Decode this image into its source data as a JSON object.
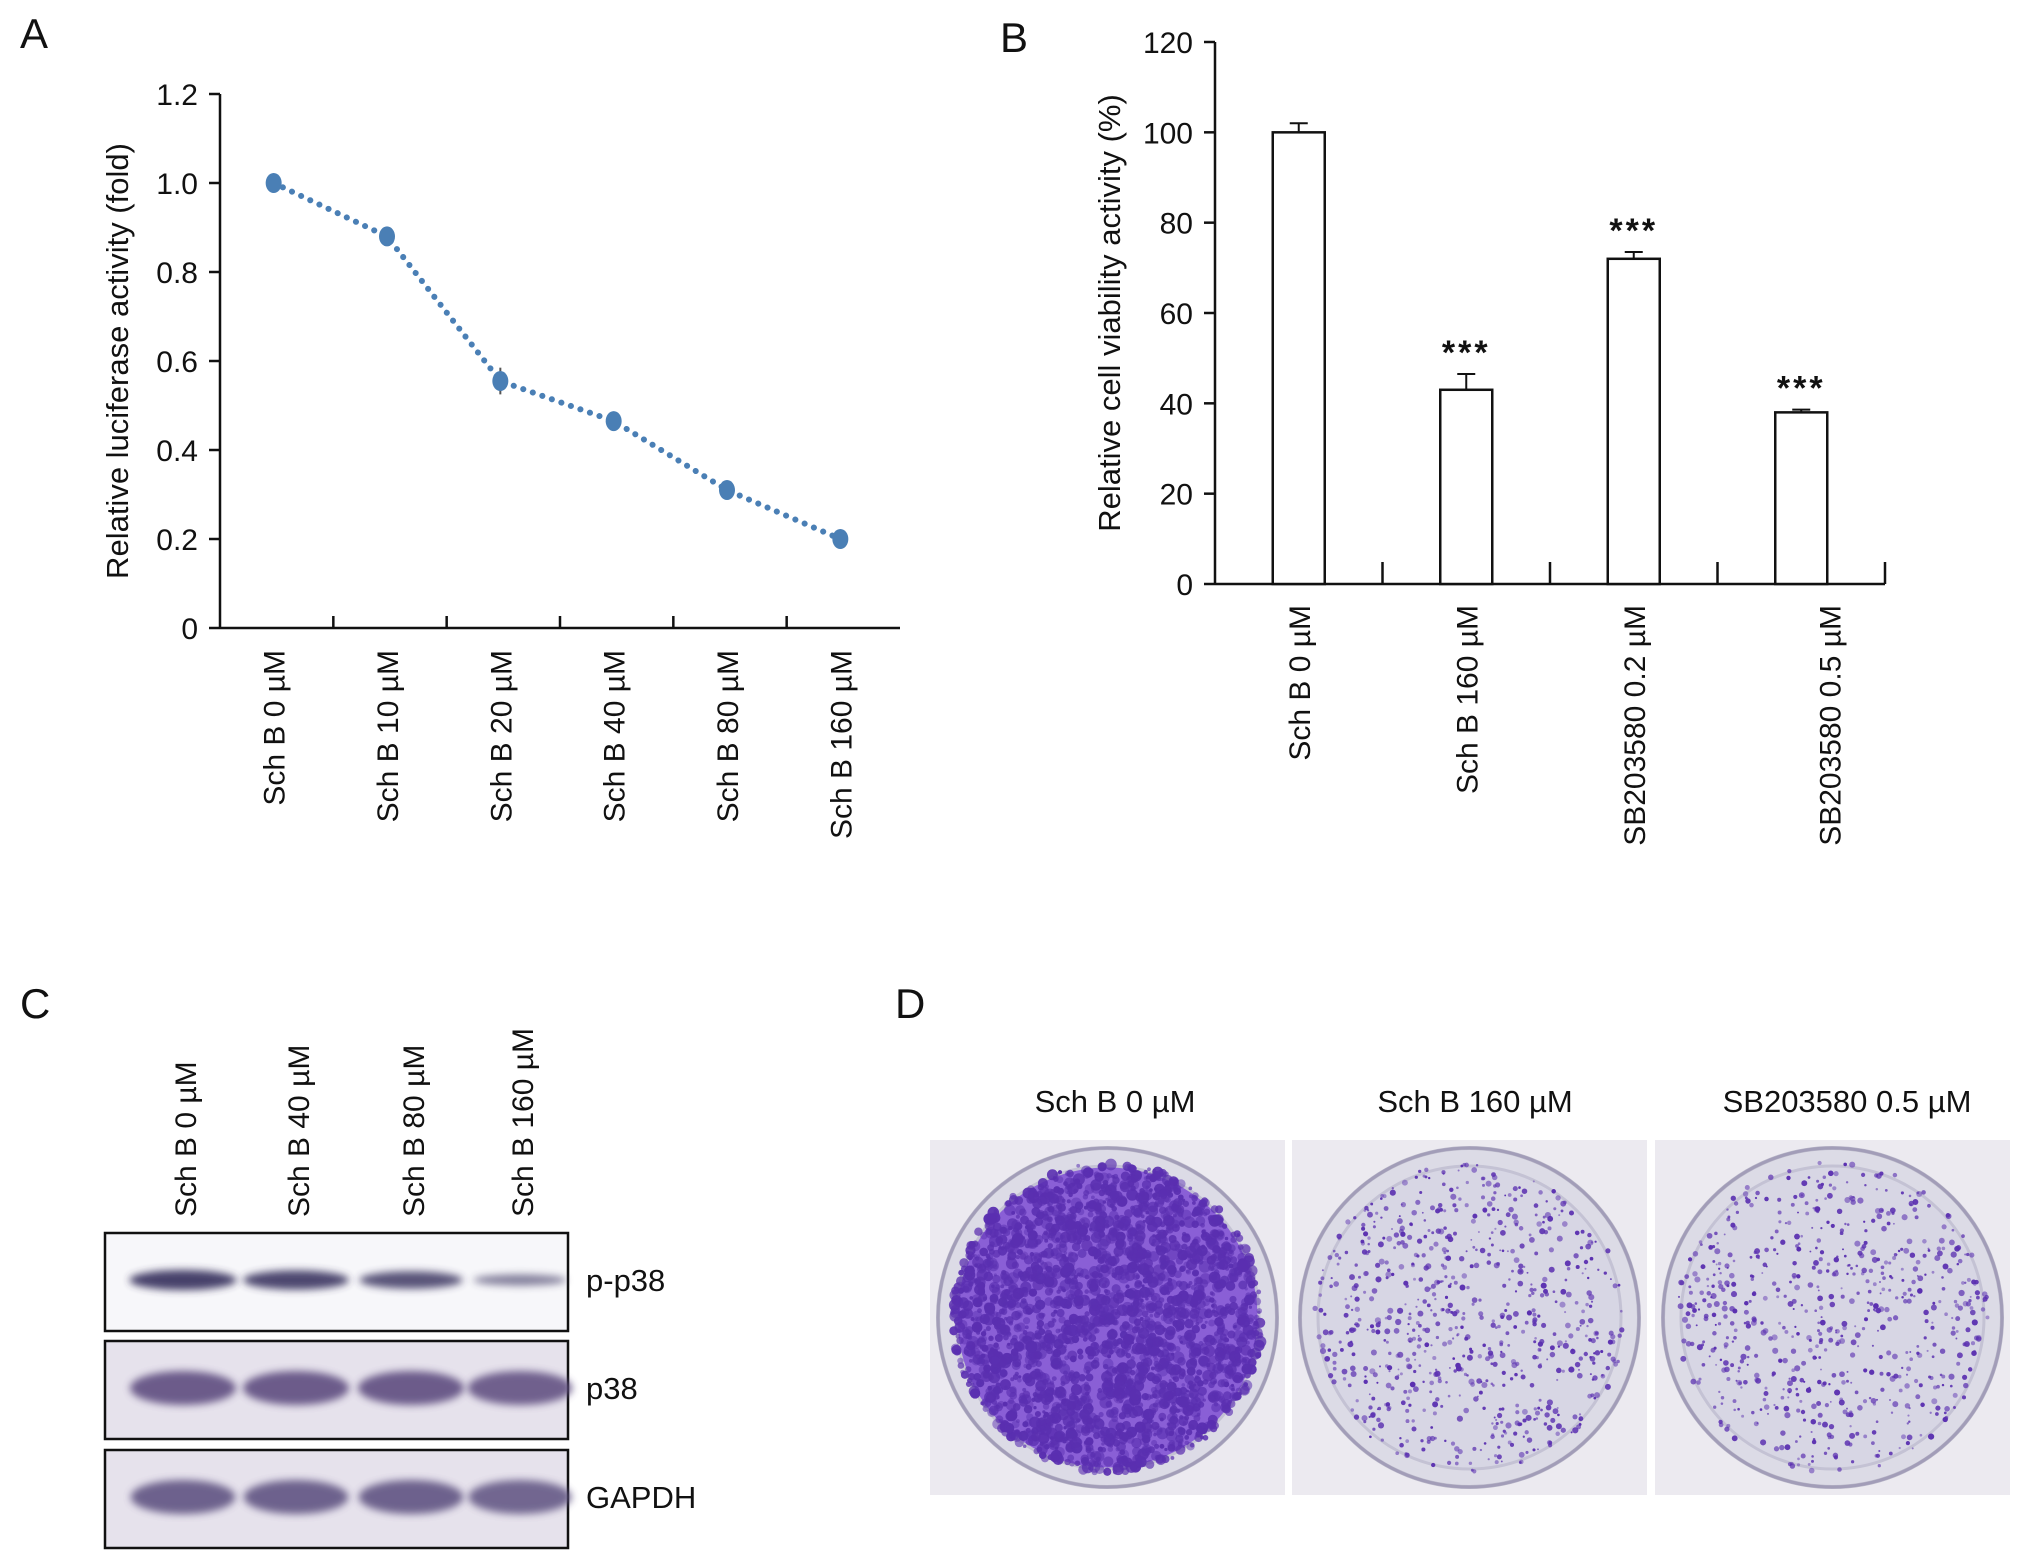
{
  "panels": {
    "a": {
      "letter": "A"
    },
    "b": {
      "letter": "B"
    },
    "c": {
      "letter": "C"
    },
    "d": {
      "letter": "D"
    }
  },
  "chart_data": [
    {
      "id": "A",
      "type": "line",
      "categories": [
        "Sch B 0 µM",
        "Sch B 10 µM",
        "Sch B 20 µM",
        "Sch B 40 µM",
        "Sch B 80 µM",
        "Sch B 160 µM"
      ],
      "values": [
        1.0,
        0.88,
        0.555,
        0.465,
        0.31,
        0.2
      ],
      "errors": [
        0.01,
        0.015,
        0.03,
        0.015,
        0.012,
        0.01
      ],
      "ylabel": "Relative luciferase activity (fold)",
      "xlabel": "",
      "ylim": [
        0,
        1.2
      ],
      "yticks": [
        "0",
        "0.2",
        "0.4",
        "0.6",
        "0.8",
        "1.0",
        "1.2"
      ],
      "ytick_values": [
        0,
        0.2,
        0.4,
        0.6,
        0.8,
        1.0,
        1.2
      ],
      "line_style": "dotted",
      "color": "#4a7fb5",
      "grid": false
    },
    {
      "id": "B",
      "type": "bar",
      "categories": [
        "Sch B 0 µM",
        "Sch B 160 µM",
        "SB203580 0.2 µM",
        "SB203580 0.5 µM"
      ],
      "values": [
        100,
        43,
        72,
        38
      ],
      "errors": [
        2,
        3.5,
        1.5,
        0.6
      ],
      "significance": [
        "",
        "***",
        "***",
        "***"
      ],
      "ylabel": "Relative cell viability activity (%)",
      "xlabel": "",
      "ylim": [
        0,
        120
      ],
      "yticks": [
        "0",
        "20",
        "40",
        "60",
        "80",
        "100",
        "120"
      ],
      "ytick_values": [
        0,
        20,
        40,
        60,
        80,
        100,
        120
      ],
      "bar_fill": "#ffffff",
      "bar_stroke": "#111111",
      "grid": false
    }
  ],
  "western_blot": {
    "lanes": [
      "Sch B 0 µM",
      "Sch B 40 µM",
      "Sch B 80 µM",
      "Sch B 160 µM"
    ],
    "rows": [
      {
        "label": "p-p38",
        "intensity": [
          0.9,
          0.85,
          0.75,
          0.4
        ],
        "color": "#3a3561"
      },
      {
        "label": "p38",
        "intensity": [
          0.85,
          0.85,
          0.85,
          0.8
        ],
        "color": "#5e4d80"
      },
      {
        "label": "GAPDH",
        "intensity": [
          0.8,
          0.8,
          0.8,
          0.75
        ],
        "color": "#5b4f7f"
      }
    ]
  },
  "colony_assay": {
    "plates": [
      {
        "label": "Sch B 0 µM",
        "density": 0.9
      },
      {
        "label": "Sch B 160 µM",
        "density": 0.2
      },
      {
        "label": "SB203580 0.5 µM",
        "density": 0.18
      }
    ],
    "stain_color": "#5a2fb0"
  }
}
